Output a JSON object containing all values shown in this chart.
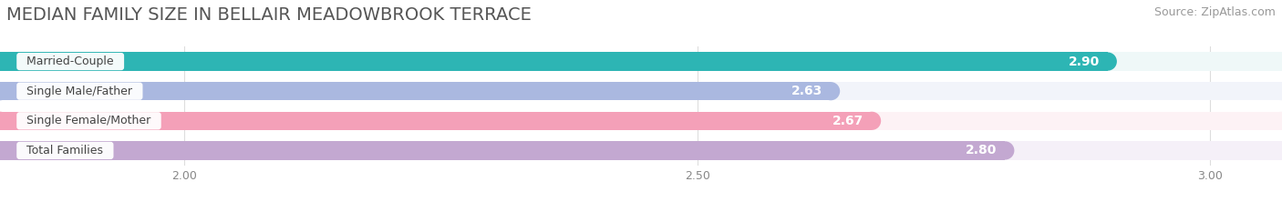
{
  "title": "MEDIAN FAMILY SIZE IN BELLAIR MEADOWBROOK TERRACE",
  "source": "Source: ZipAtlas.com",
  "categories": [
    "Married-Couple",
    "Single Male/Father",
    "Single Female/Mother",
    "Total Families"
  ],
  "values": [
    2.9,
    2.63,
    2.67,
    2.8
  ],
  "bar_colors": [
    "#2db5b4",
    "#aab8e0",
    "#f4a0b8",
    "#c3a8d1"
  ],
  "bar_bg_colors": [
    "#eff8f8",
    "#f2f4fa",
    "#fdf2f5",
    "#f5f0f8"
  ],
  "xlim_min": 1.82,
  "xlim_max": 3.07,
  "xticks": [
    2.0,
    2.5,
    3.0
  ],
  "xtick_labels": [
    "2.00",
    "2.50",
    "3.00"
  ],
  "title_fontsize": 14,
  "source_fontsize": 9,
  "bar_label_fontsize": 10,
  "category_fontsize": 9,
  "background_color": "#ffffff",
  "bar_height": 0.62,
  "bar_gap": 1.0
}
